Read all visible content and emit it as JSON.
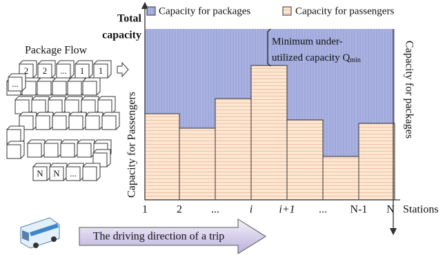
{
  "header": {
    "title_line1": "Total",
    "title_line2": "capacity"
  },
  "legend": [
    "Capacity for packages",
    "Capacity for passengers"
  ],
  "package_flow": {
    "title": "Package Flow",
    "row1": [
      "2",
      "2",
      "...",
      "1",
      "1"
    ],
    "row2": [
      "..."
    ],
    "row_last": [
      "N",
      "N",
      "..."
    ]
  },
  "annotation": {
    "line1": "Minimum under-",
    "line2": "utilized capacity Q",
    "subscript": "min"
  },
  "axes": {
    "y_left": "Capacity for Passengers",
    "y_right": "Capacity for packages",
    "x_title": "Stations",
    "x_labels": [
      "1",
      "2",
      "...",
      "i",
      "i+1",
      "...",
      "N-1",
      "N"
    ]
  },
  "direction": "The driving direction of a trip"
}
